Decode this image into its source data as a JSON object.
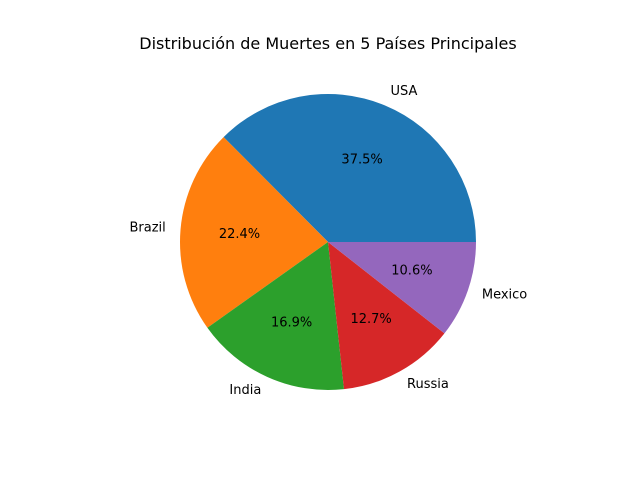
{
  "chart_data": {
    "type": "pie",
    "title": "Distribución de Muertes en 5 Países Principales",
    "categories": [
      "USA",
      "Brazil",
      "India",
      "Russia",
      "Mexico"
    ],
    "values": [
      37.5,
      22.4,
      16.9,
      12.7,
      10.6
    ],
    "percent_labels": [
      "37.5%",
      "22.4%",
      "16.9%",
      "12.7%",
      "10.6%"
    ],
    "colors": [
      "#1f77b4",
      "#ff7f0e",
      "#2ca02c",
      "#d62728",
      "#9467bd"
    ],
    "start_angle_deg": 0,
    "direction": "counterclockwise",
    "legend": "none"
  }
}
